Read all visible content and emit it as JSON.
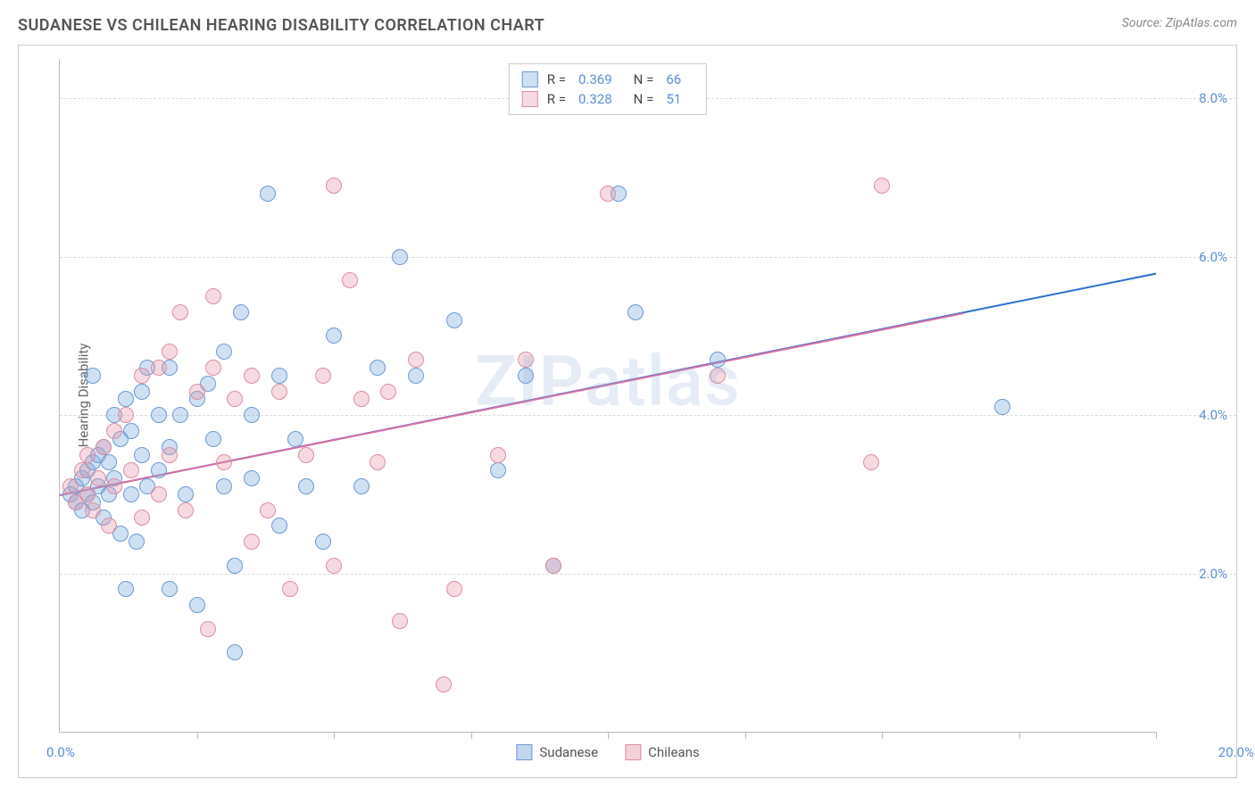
{
  "header": {
    "title": "SUDANESE VS CHILEAN HEARING DISABILITY CORRELATION CHART",
    "source": "Source: ZipAtlas.com"
  },
  "watermark": {
    "bold": "ZIP",
    "rest": "atlas"
  },
  "chart": {
    "type": "scatter",
    "y_axis_title": "Hearing Disability",
    "xlim": [
      0,
      20
    ],
    "ylim": [
      0,
      8.5
    ],
    "x_min_label": "0.0%",
    "x_max_label": "20.0%",
    "x_ticks": [
      2.5,
      5,
      7.5,
      10,
      12.5,
      15,
      17.5,
      20
    ],
    "y_gridlines": [
      {
        "v": 2,
        "label": "2.0%"
      },
      {
        "v": 4,
        "label": "4.0%"
      },
      {
        "v": 6,
        "label": "6.0%"
      },
      {
        "v": 8,
        "label": "8.0%"
      }
    ],
    "point_radius": 9,
    "series": [
      {
        "name": "Sudanese",
        "fill": "rgba(120,165,220,0.35)",
        "stroke": "#6b9bd1",
        "r_label": "R =",
        "r_value": "0.369",
        "n_label": "N =",
        "n_value": "66",
        "trend": {
          "x1": 0,
          "y1": 3.0,
          "x2": 20,
          "y2": 5.8,
          "color": "#2b6fd0"
        },
        "points": [
          [
            0.2,
            3.0
          ],
          [
            0.3,
            3.1
          ],
          [
            0.3,
            2.9
          ],
          [
            0.4,
            3.2
          ],
          [
            0.4,
            2.8
          ],
          [
            0.5,
            3.0
          ],
          [
            0.5,
            3.3
          ],
          [
            0.6,
            3.4
          ],
          [
            0.6,
            2.9
          ],
          [
            0.7,
            3.1
          ],
          [
            0.7,
            3.5
          ],
          [
            0.8,
            3.6
          ],
          [
            0.8,
            2.7
          ],
          [
            0.9,
            3.0
          ],
          [
            0.9,
            3.4
          ],
          [
            1.0,
            4.0
          ],
          [
            1.0,
            3.2
          ],
          [
            1.1,
            3.7
          ],
          [
            1.1,
            2.5
          ],
          [
            1.2,
            4.2
          ],
          [
            1.3,
            3.0
          ],
          [
            1.3,
            3.8
          ],
          [
            1.4,
            2.4
          ],
          [
            1.5,
            3.5
          ],
          [
            1.5,
            4.3
          ],
          [
            1.6,
            4.6
          ],
          [
            1.6,
            3.1
          ],
          [
            1.8,
            4.0
          ],
          [
            1.8,
            3.3
          ],
          [
            2.0,
            4.6
          ],
          [
            2.0,
            3.6
          ],
          [
            2.0,
            1.8
          ],
          [
            2.2,
            4.0
          ],
          [
            2.3,
            3.0
          ],
          [
            2.5,
            1.6
          ],
          [
            2.5,
            4.2
          ],
          [
            2.7,
            4.4
          ],
          [
            2.8,
            3.7
          ],
          [
            3.0,
            4.8
          ],
          [
            3.0,
            3.1
          ],
          [
            3.2,
            1.0
          ],
          [
            3.2,
            2.1
          ],
          [
            3.3,
            5.3
          ],
          [
            3.5,
            4.0
          ],
          [
            3.5,
            3.2
          ],
          [
            3.8,
            6.8
          ],
          [
            4.0,
            4.5
          ],
          [
            4.0,
            2.6
          ],
          [
            4.3,
            3.7
          ],
          [
            4.5,
            3.1
          ],
          [
            4.8,
            2.4
          ],
          [
            5.0,
            5.0
          ],
          [
            5.5,
            3.1
          ],
          [
            5.8,
            4.6
          ],
          [
            6.2,
            6.0
          ],
          [
            6.5,
            4.5
          ],
          [
            7.2,
            5.2
          ],
          [
            8.0,
            3.3
          ],
          [
            8.5,
            4.5
          ],
          [
            9.0,
            2.1
          ],
          [
            10.2,
            6.8
          ],
          [
            10.5,
            5.3
          ],
          [
            12.0,
            4.7
          ],
          [
            17.2,
            4.1
          ],
          [
            0.6,
            4.5
          ],
          [
            1.2,
            1.8
          ]
        ]
      },
      {
        "name": "Chileans",
        "fill": "rgba(230,150,170,0.35)",
        "stroke": "#db8fa3",
        "r_label": "R =",
        "r_value": "0.328",
        "n_label": "N =",
        "n_value": "51",
        "trend": {
          "x1": 0,
          "y1": 3.0,
          "x2": 16.5,
          "y2": 5.3,
          "color": "#d96fa3"
        },
        "points": [
          [
            0.2,
            3.1
          ],
          [
            0.3,
            2.9
          ],
          [
            0.4,
            3.3
          ],
          [
            0.5,
            3.0
          ],
          [
            0.5,
            3.5
          ],
          [
            0.6,
            2.8
          ],
          [
            0.7,
            3.2
          ],
          [
            0.8,
            3.6
          ],
          [
            0.9,
            2.6
          ],
          [
            1.0,
            3.8
          ],
          [
            1.0,
            3.1
          ],
          [
            1.2,
            4.0
          ],
          [
            1.3,
            3.3
          ],
          [
            1.5,
            4.5
          ],
          [
            1.5,
            2.7
          ],
          [
            1.8,
            4.6
          ],
          [
            1.8,
            3.0
          ],
          [
            2.0,
            4.8
          ],
          [
            2.0,
            3.5
          ],
          [
            2.2,
            5.3
          ],
          [
            2.3,
            2.8
          ],
          [
            2.5,
            4.3
          ],
          [
            2.7,
            1.3
          ],
          [
            2.8,
            4.6
          ],
          [
            3.0,
            3.4
          ],
          [
            3.2,
            4.2
          ],
          [
            3.5,
            2.4
          ],
          [
            3.5,
            4.5
          ],
          [
            3.8,
            2.8
          ],
          [
            4.0,
            4.3
          ],
          [
            4.2,
            1.8
          ],
          [
            4.5,
            3.5
          ],
          [
            4.8,
            4.5
          ],
          [
            5.0,
            6.9
          ],
          [
            5.0,
            2.1
          ],
          [
            5.3,
            5.7
          ],
          [
            5.5,
            4.2
          ],
          [
            5.8,
            3.4
          ],
          [
            6.0,
            4.3
          ],
          [
            6.2,
            1.4
          ],
          [
            6.5,
            4.7
          ],
          [
            7.0,
            0.6
          ],
          [
            7.2,
            1.8
          ],
          [
            8.0,
            3.5
          ],
          [
            8.5,
            4.7
          ],
          [
            9.0,
            2.1
          ],
          [
            10.0,
            6.8
          ],
          [
            12.0,
            4.5
          ],
          [
            14.8,
            3.4
          ],
          [
            15.0,
            6.9
          ],
          [
            2.8,
            5.5
          ]
        ]
      }
    ]
  },
  "bottom_legend": [
    {
      "label": "Sudanese",
      "fill": "rgba(120,165,220,0.45)",
      "stroke": "#6b9bd1"
    },
    {
      "label": "Chileans",
      "fill": "rgba(230,150,170,0.45)",
      "stroke": "#db8fa3"
    }
  ]
}
